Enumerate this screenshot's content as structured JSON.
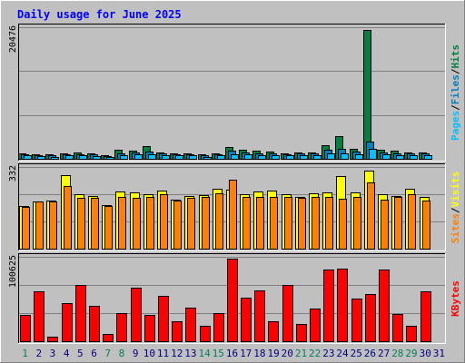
{
  "chart_data": [
    {
      "type": "bar",
      "panel": "hits-files-pages",
      "title": "Daily usage for June 2025",
      "y_max_label": "20476",
      "ylim": [
        0,
        20476
      ],
      "categories": [
        "1",
        "2",
        "3",
        "4",
        "5",
        "6",
        "7",
        "8",
        "9",
        "10",
        "11",
        "12",
        "13",
        "14",
        "15",
        "16",
        "17",
        "18",
        "19",
        "20",
        "21",
        "22",
        "23",
        "24",
        "25",
        "26",
        "27",
        "28",
        "29",
        "30",
        "31"
      ],
      "ylabel_parts": [
        "Pages",
        "/",
        "Files",
        "/",
        "Hits"
      ],
      "series": [
        {
          "name": "Hits",
          "values": [
            900,
            700,
            650,
            850,
            1050,
            850,
            500,
            1350,
            1250,
            2000,
            1050,
            850,
            900,
            650,
            850,
            1900,
            1450,
            1250,
            1150,
            850,
            1050,
            1050,
            2050,
            3500,
            1500,
            20000,
            1450,
            1250,
            1050,
            1050,
            0
          ]
        },
        {
          "name": "Files",
          "values": [
            700,
            550,
            500,
            700,
            700,
            650,
            400,
            900,
            1000,
            1200,
            800,
            700,
            700,
            500,
            700,
            1300,
            1000,
            900,
            800,
            700,
            800,
            800,
            1400,
            1500,
            1200,
            2700,
            1000,
            900,
            800,
            800,
            0
          ]
        },
        {
          "name": "Pages",
          "values": [
            500,
            400,
            350,
            500,
            500,
            450,
            300,
            600,
            650,
            700,
            550,
            500,
            500,
            350,
            500,
            700,
            650,
            600,
            550,
            500,
            550,
            550,
            800,
            900,
            700,
            1600,
            650,
            600,
            550,
            550,
            0
          ]
        }
      ]
    },
    {
      "type": "bar",
      "panel": "visits-sites",
      "y_max_label": "332",
      "ylim": [
        0,
        332
      ],
      "ylabel_parts": [
        "Sites",
        "/",
        "Visits"
      ],
      "series": [
        {
          "name": "Visits",
          "values": [
            172,
            193,
            195,
            300,
            220,
            215,
            178,
            232,
            230,
            222,
            235,
            200,
            215,
            218,
            245,
            238,
            223,
            232,
            235,
            222,
            210,
            225,
            230,
            295,
            228,
            318,
            222,
            215,
            242,
            212,
            0
          ]
        },
        {
          "name": "Sites",
          "values": [
            168,
            190,
            192,
            255,
            205,
            205,
            172,
            210,
            205,
            210,
            222,
            195,
            205,
            212,
            225,
            282,
            212,
            212,
            212,
            212,
            205,
            212,
            212,
            203,
            212,
            268,
            200,
            210,
            220,
            197,
            0
          ]
        }
      ]
    },
    {
      "type": "bar",
      "panel": "kbytes",
      "y_max_label": "100625",
      "ylim": [
        0,
        100625
      ],
      "ylabel_parts": [
        "KBytes"
      ],
      "series": [
        {
          "name": "KBytes",
          "values": [
            31000,
            59000,
            5000,
            45000,
            67000,
            42000,
            9000,
            34000,
            64000,
            31000,
            54000,
            24000,
            40000,
            18000,
            34000,
            99000,
            52000,
            61000,
            24000,
            67000,
            21000,
            39000,
            85000,
            87000,
            51000,
            56000,
            86000,
            32000,
            18000,
            59000,
            0
          ]
        }
      ]
    }
  ],
  "colors": {
    "background": "#c0c0c0",
    "title": "#0000ff",
    "hits": "#008040",
    "files": "#0080c0",
    "pages": "#00c0ff",
    "visits": "#ffff00",
    "sites": "#ff8000",
    "kbytes": "#ff0000",
    "weekend_day": "#00805c",
    "weekday_day": "#000080",
    "axis_label": "#000000"
  },
  "weekend_days": [
    1,
    7,
    8,
    14,
    15,
    21,
    22,
    28,
    29
  ]
}
